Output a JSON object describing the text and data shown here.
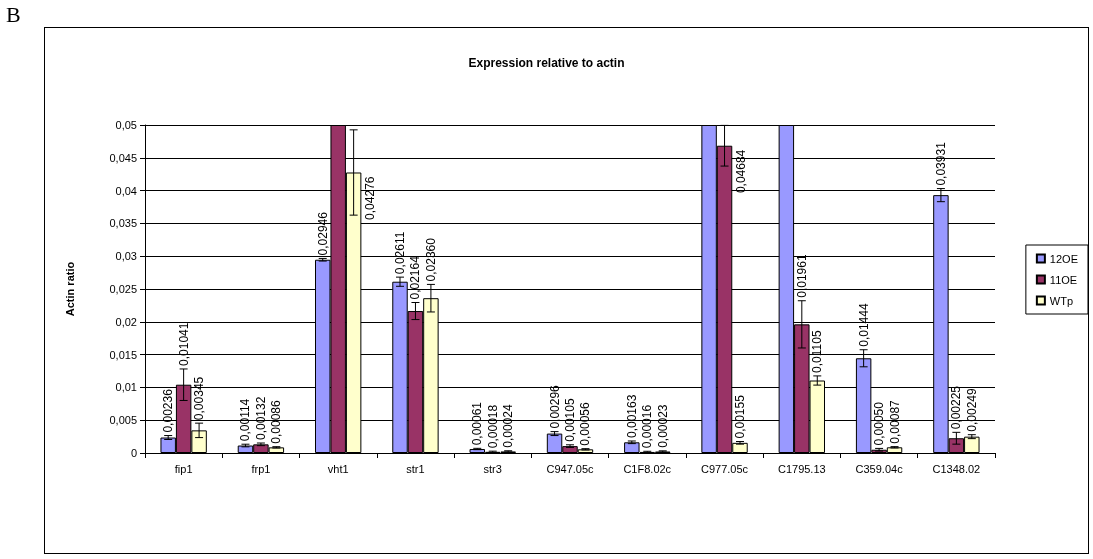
{
  "chart_data": {
    "type": "bar",
    "title": "Expression relative to actin",
    "ylabel": "Actin ratio",
    "annotations": [
      "B"
    ],
    "categories": [
      "fip1",
      "frp1",
      "vht1",
      "str1",
      "str3",
      "C947.05c",
      "C1F8.02c",
      "C977.05c",
      "C1795.13",
      "C359.04c",
      "C1348.02"
    ],
    "series": [
      {
        "name": "12OE",
        "color": "#9999ff",
        "values": [
          0.00236,
          0.00114,
          0.02946,
          0.02611,
          0.00061,
          0.00296,
          0.00163,
          0.05,
          0.05,
          0.01444,
          0.03931
        ],
        "value_labels": [
          "0,00236",
          "0,00114",
          "0,02946",
          "0,02611",
          "0,00061",
          "0,00296",
          "0,00163",
          null,
          null,
          "0,01444",
          "0,03931"
        ],
        "errors": [
          0.0003,
          0.0002,
          0.0002,
          0.0007,
          0.0001,
          0.0003,
          0.0002,
          null,
          null,
          0.0013,
          0.001
        ]
      },
      {
        "name": "11OE",
        "color": "#993366",
        "values": [
          0.01041,
          0.00132,
          0.05,
          0.02164,
          0.00018,
          0.00105,
          0.00016,
          0.04684,
          0.01961,
          0.0005,
          0.00225
        ],
        "value_labels": [
          "0,01041",
          "0,00132",
          null,
          "0,02164",
          "0,00018",
          "0,00105",
          "0,00016",
          "0,04684",
          "0,01961",
          "0,00050",
          "0,00225"
        ],
        "errors": [
          0.0024,
          0.0002,
          null,
          0.0013,
          0.0001,
          0.0002,
          0.0001,
          0.0031,
          0.0036,
          0.0002,
          0.0009
        ]
      },
      {
        "name": "WTp",
        "color": "#ffffcc",
        "values": [
          0.00345,
          0.00086,
          0.04276,
          0.0236,
          0.00024,
          0.00056,
          0.00023,
          0.00155,
          0.01105,
          0.00087,
          0.00249
        ],
        "value_labels": [
          "0,00345",
          "0,00086",
          "0,04276",
          "0,02360",
          "0,00024",
          "0,00056",
          "0,00023",
          "0,00155",
          "0,01105",
          "0,00087",
          "0,00249"
        ],
        "errors": [
          0.0011,
          0.0001,
          0.0065,
          0.0021,
          0.0001,
          0.0001,
          0.0001,
          0.0002,
          0.0007,
          0.0001,
          0.0003
        ]
      }
    ],
    "ylim": [
      0,
      0.05
    ],
    "yticks": [
      0,
      {
        "value": 0.005,
        "label": "0,005"
      },
      {
        "value": 0.01,
        "label": "0,01"
      },
      {
        "value": 0.015,
        "label": "0,015"
      },
      {
        "value": 0.02,
        "label": "0,02"
      },
      {
        "value": 0.025,
        "label": "0,025"
      },
      {
        "value": 0.03,
        "label": "0,03"
      },
      {
        "value": 0.035,
        "label": "0,035"
      },
      {
        "value": 0.04,
        "label": "0,04"
      },
      {
        "value": 0.045,
        "label": "0,045"
      },
      {
        "value": 0.05,
        "label": "0,05"
      }
    ],
    "grid": "y",
    "legend": "right"
  }
}
